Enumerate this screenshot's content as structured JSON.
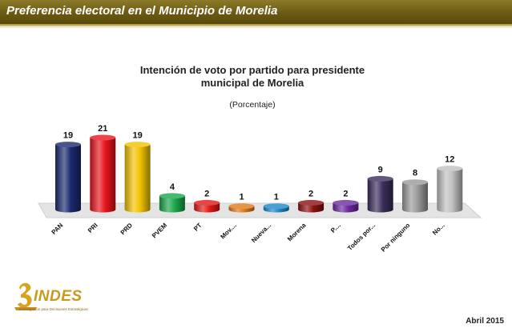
{
  "header": {
    "title": "Preferencia electoral en el Municipio de Morelia"
  },
  "chart_data": {
    "type": "bar",
    "title_line1": "Intención de voto por partido para presidente",
    "title_line2": "municipal de Morelia",
    "subtitle": "(Porcentaje)",
    "categories": [
      "PAN",
      "PRI",
      "PRD",
      "PVEM",
      "PT",
      "Mov....",
      "Nueva...",
      "Morena",
      "P....",
      "Todos por...",
      "Por ninguno",
      "No..."
    ],
    "values": [
      19,
      21,
      19,
      4,
      2,
      1,
      1,
      2,
      2,
      9,
      8,
      12
    ],
    "colors": [
      "#1c2a6e",
      "#e8141c",
      "#f2c200",
      "#1aa84a",
      "#e01818",
      "#e07a1a",
      "#1e88c8",
      "#8a1010",
      "#6a2a9e",
      "#3a2e5a",
      "#9a9a9a",
      "#c0c0c0"
    ],
    "ylim": [
      0,
      21
    ],
    "xlabel": "",
    "ylabel": ""
  },
  "logo": {
    "name": "INDES",
    "subtitle": "Investigación para Decisiones Estratégicas"
  },
  "footer": {
    "date": "Abril 2015"
  }
}
